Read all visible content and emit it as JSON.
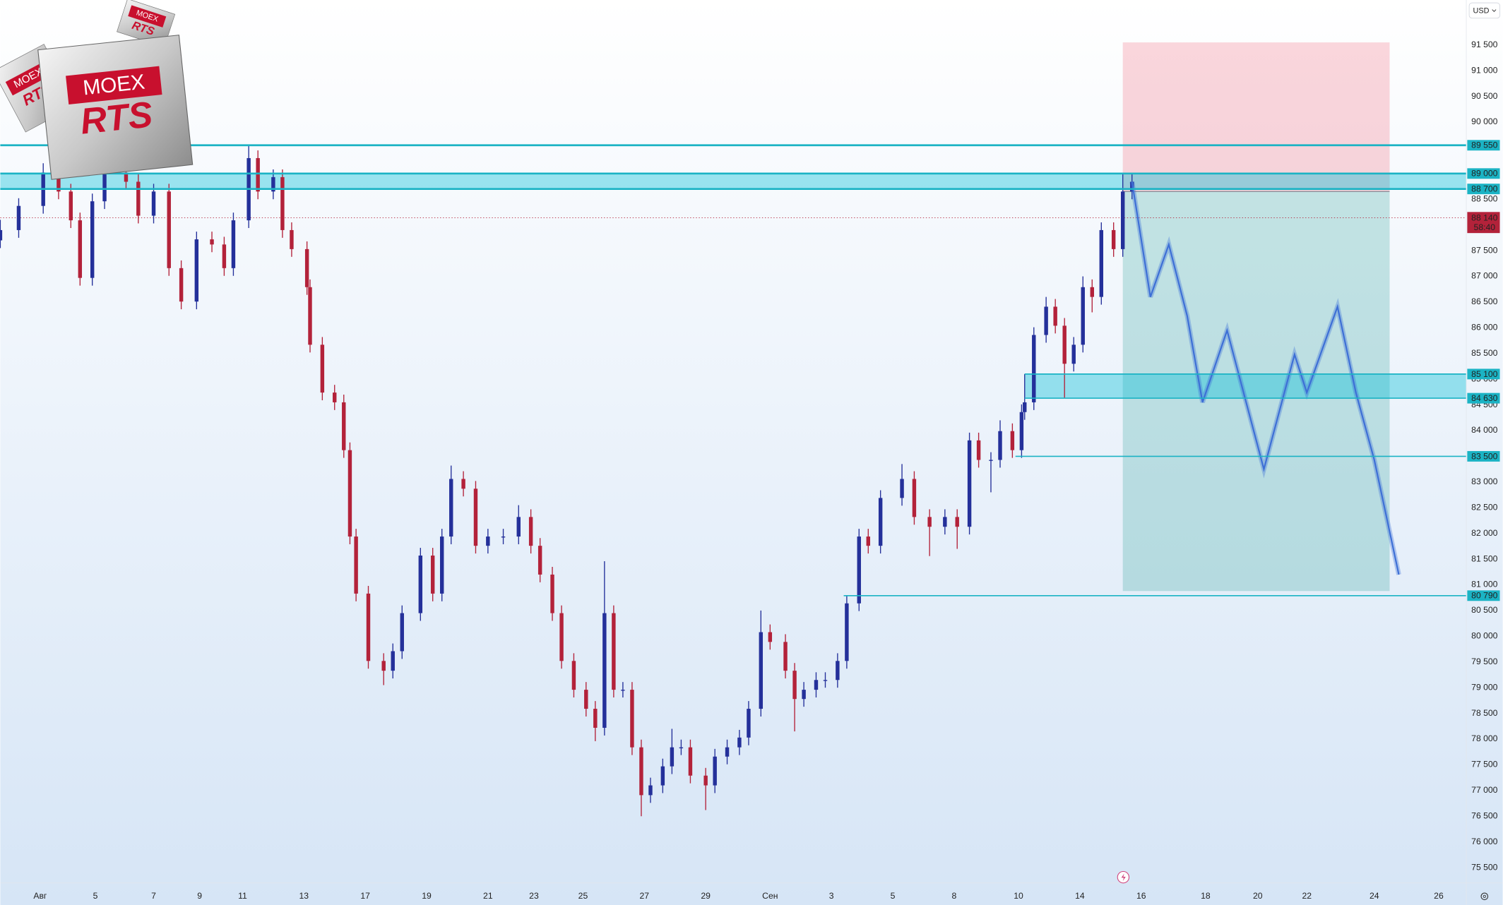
{
  "chart_data": {
    "type": "candlestick",
    "currency": "USD",
    "up_color": "#24309a",
    "down_color": "#b3223a",
    "grid": false,
    "xlim": [
      -1.3,
      46.5
    ],
    "ylim": [
      75202,
      92375
    ],
    "x": [
      -1.3,
      -0.7,
      0.1,
      0.6,
      1.0,
      1.3,
      1.7,
      2.1,
      2.8,
      3.2,
      3.7,
      4.2,
      4.6,
      5.1,
      5.6,
      6.0,
      6.3,
      6.8,
      7.1,
      7.6,
      7.9,
      8.2,
      8.7,
      8.8,
      9.2,
      9.6,
      9.9,
      10.1,
      10.3,
      10.7,
      11.2,
      11.5,
      11.8,
      12.4,
      12.8,
      13.1,
      13.4,
      13.8,
      14.2,
      14.6,
      15.1,
      15.6,
      16.0,
      16.3,
      16.7,
      17.0,
      17.4,
      17.8,
      18.1,
      18.4,
      18.7,
      19.0,
      19.3,
      19.6,
      19.9,
      20.3,
      20.6,
      20.9,
      21.2,
      21.7,
      22.0,
      22.4,
      22.8,
      23.1,
      23.5,
      23.8,
      24.3,
      24.6,
      24.9,
      25.3,
      25.6,
      26.0,
      26.3,
      26.7,
      27.0,
      27.4,
      28.1,
      28.5,
      29.0,
      29.5,
      29.9,
      30.3,
      30.6,
      31.0,
      31.3,
      31.7,
      32.0,
      32.1,
      32.4,
      32.8,
      33.1,
      33.4,
      33.7,
      34.0,
      34.3,
      34.6,
      35.0,
      35.3,
      35.6
    ],
    "open": [
      87700,
      87900,
      88370,
      89020,
      88650,
      88090,
      86970,
      88460,
      89020,
      88840,
      88180,
      88650,
      87160,
      86510,
      87720,
      87620,
      87160,
      88090,
      89300,
      88650,
      88930,
      87900,
      87530,
      86790,
      85670,
      84740,
      84550,
      83620,
      81940,
      80830,
      79520,
      79330,
      79710,
      80450,
      81570,
      80830,
      81940,
      83060,
      82870,
      81760,
      81940,
      81940,
      82320,
      81760,
      81200,
      80450,
      79520,
      78960,
      78590,
      78220,
      80450,
      78960,
      78960,
      77840,
      76910,
      77100,
      77470,
      77840,
      77840,
      77290,
      77100,
      77660,
      77840,
      78030,
      78590,
      80080,
      79890,
      79330,
      78780,
      78960,
      79150,
      79150,
      79520,
      80640,
      81940,
      81760,
      82690,
      83060,
      82320,
      82130,
      82320,
      82130,
      83810,
      83430,
      83430,
      83990,
      83620,
      84360,
      84550,
      85860,
      86410,
      86040,
      85300,
      85670,
      86790,
      86600,
      87900,
      87530,
      88650
    ],
    "high": [
      88100,
      88520,
      89200,
      89170,
      88800,
      88240,
      88610,
      89170,
      89170,
      88990,
      88800,
      88800,
      87310,
      87870,
      87870,
      87770,
      88240,
      89550,
      89450,
      89080,
      89080,
      88050,
      87680,
      86940,
      85820,
      84890,
      84700,
      83770,
      82090,
      80980,
      79670,
      79860,
      80600,
      81720,
      81720,
      82090,
      83320,
      83210,
      83020,
      82090,
      82090,
      82550,
      82470,
      81910,
      81350,
      80600,
      79670,
      79110,
      78740,
      81460,
      80600,
      79110,
      79110,
      77990,
      77250,
      77620,
      78200,
      77990,
      77990,
      77440,
      77810,
      77990,
      78180,
      78740,
      80500,
      80230,
      80040,
      79480,
      79110,
      79300,
      79300,
      79670,
      80790,
      82090,
      82090,
      82840,
      83350,
      83210,
      82470,
      82470,
      82470,
      83960,
      83960,
      83580,
      84200,
      84140,
      84510,
      85100,
      86010,
      86600,
      86560,
      86190,
      85820,
      87000,
      86940,
      88050,
      88050,
      89000,
      89000
    ],
    "low": [
      87550,
      87750,
      88220,
      88500,
      87940,
      86820,
      86820,
      88310,
      88690,
      88030,
      88030,
      87010,
      86360,
      86360,
      87470,
      87010,
      87010,
      87940,
      88500,
      88500,
      87750,
      87380,
      86640,
      85520,
      84590,
      84400,
      83470,
      81790,
      80680,
      79370,
      79050,
      79180,
      79560,
      80300,
      80680,
      80680,
      81790,
      82720,
      81610,
      81610,
      81790,
      81790,
      81610,
      81050,
      80300,
      79370,
      78810,
      78440,
      77960,
      78070,
      78810,
      78810,
      77690,
      76500,
      76760,
      76950,
      77320,
      77690,
      77140,
      76620,
      76950,
      77510,
      77690,
      77880,
      78440,
      79740,
      79180,
      78150,
      78630,
      78810,
      79000,
      79000,
      79370,
      80490,
      81610,
      81610,
      82540,
      82170,
      81560,
      81980,
      81700,
      81980,
      83280,
      82800,
      83280,
      83470,
      83470,
      84210,
      84400,
      85710,
      85890,
      84630,
      85150,
      85520,
      86300,
      86450,
      87380,
      87380,
      88500
    ],
    "close": [
      87900,
      88370,
      89020,
      88650,
      88090,
      86970,
      88460,
      89020,
      88840,
      88180,
      88650,
      87160,
      86510,
      87720,
      87620,
      87160,
      88090,
      89300,
      88650,
      88930,
      87900,
      87530,
      86790,
      85670,
      84740,
      84550,
      83620,
      81940,
      80830,
      79520,
      79330,
      79710,
      80450,
      81570,
      80830,
      81940,
      83060,
      82870,
      81760,
      81940,
      81940,
      82320,
      81760,
      81200,
      80450,
      79520,
      78960,
      78590,
      78220,
      80450,
      78960,
      78960,
      77840,
      76910,
      77100,
      77470,
      77840,
      77840,
      77290,
      77100,
      77660,
      77840,
      78030,
      78590,
      80080,
      79890,
      79330,
      78780,
      78960,
      79150,
      79150,
      79520,
      80640,
      81940,
      81760,
      82690,
      83060,
      82320,
      82130,
      82320,
      82130,
      83810,
      83430,
      83430,
      83990,
      83620,
      84360,
      84550,
      85860,
      86410,
      86040,
      85300,
      85670,
      86790,
      86600,
      87900,
      87530,
      88650,
      88840
    ],
    "projection": {
      "color": "#3d6fd6",
      "x": [
        35.6,
        36.2,
        36.8,
        37.4,
        37.9,
        38.7,
        39.9,
        40.9,
        41.3,
        42.3,
        42.9,
        43.5,
        44.3
      ],
      "values": [
        88840,
        86600,
        87620,
        86230,
        84550,
        85950,
        83250,
        85480,
        84740,
        86410,
        84740,
        83430,
        81200
      ]
    },
    "position": {
      "x": [
        35.3,
        44.0
      ],
      "entry": 88650,
      "stop": 91550,
      "target": 80880
    },
    "levels": [
      {
        "value": 89550,
        "label": "89 550",
        "start": -1.3
      },
      {
        "value": 89000,
        "label": "89 000",
        "start": -1.3
      },
      {
        "value": 88700,
        "label": "88 700",
        "start": -1.3
      },
      {
        "value": 85100,
        "label": "85 100",
        "start": 32.1
      },
      {
        "value": 84630,
        "label": "84 630",
        "start": 32.1
      },
      {
        "value": 83500,
        "label": "83 500",
        "start": 31.8
      },
      {
        "value": 80790,
        "label": "80 790",
        "start": 26.2
      }
    ],
    "level_color": "#1bb3c4",
    "zones": [
      {
        "from": 88700,
        "to": 89000,
        "start": -1.3
      },
      {
        "from": 84630,
        "to": 85100,
        "start": 32.1
      }
    ],
    "last_price": {
      "value": 88140,
      "label": "88 140",
      "countdown": "58:40"
    },
    "xticks": [
      {
        "value": 0,
        "label": "Авг"
      },
      {
        "value": 1.8,
        "label": "5"
      },
      {
        "value": 3.7,
        "label": "7"
      },
      {
        "value": 5.2,
        "label": "9"
      },
      {
        "value": 6.6,
        "label": "11"
      },
      {
        "value": 8.6,
        "label": "13"
      },
      {
        "value": 10.6,
        "label": "17"
      },
      {
        "value": 12.6,
        "label": "19"
      },
      {
        "value": 14.6,
        "label": "21"
      },
      {
        "value": 16.1,
        "label": "23"
      },
      {
        "value": 17.7,
        "label": "25"
      },
      {
        "value": 19.7,
        "label": "27"
      },
      {
        "value": 21.7,
        "label": "29"
      },
      {
        "value": 23.8,
        "label": "Сен"
      },
      {
        "value": 25.8,
        "label": "3"
      },
      {
        "value": 27.8,
        "label": "5"
      },
      {
        "value": 29.8,
        "label": "8"
      },
      {
        "value": 31.9,
        "label": "10"
      },
      {
        "value": 33.9,
        "label": "14"
      },
      {
        "value": 35.9,
        "label": "16"
      },
      {
        "value": 38.0,
        "label": "18"
      },
      {
        "value": 39.7,
        "label": "20"
      },
      {
        "value": 41.3,
        "label": "22"
      },
      {
        "value": 43.5,
        "label": "24"
      },
      {
        "value": 45.6,
        "label": "26"
      }
    ],
    "yticks": [
      {
        "value": 75500,
        "label": "75 500"
      },
      {
        "value": 76000,
        "label": "76 000"
      },
      {
        "value": 76500,
        "label": "76 500"
      },
      {
        "value": 77000,
        "label": "77 000"
      },
      {
        "value": 77500,
        "label": "77 500"
      },
      {
        "value": 78000,
        "label": "78 000"
      },
      {
        "value": 78500,
        "label": "78 500"
      },
      {
        "value": 79000,
        "label": "79 000"
      },
      {
        "value": 79500,
        "label": "79 500"
      },
      {
        "value": 80000,
        "label": "80 000"
      },
      {
        "value": 80500,
        "label": "80 500"
      },
      {
        "value": 81000,
        "label": "81 000"
      },
      {
        "value": 81500,
        "label": "81 500"
      },
      {
        "value": 82000,
        "label": "82 000"
      },
      {
        "value": 82500,
        "label": "82 500"
      },
      {
        "value": 83000,
        "label": "83 000"
      },
      {
        "value": 83500,
        "label": "83 500"
      },
      {
        "value": 84000,
        "label": "84 000"
      },
      {
        "value": 84500,
        "label": "84 500"
      },
      {
        "value": 85000,
        "label": "85 000"
      },
      {
        "value": 85500,
        "label": "85 500"
      },
      {
        "value": 86000,
        "label": "86 000"
      },
      {
        "value": 86500,
        "label": "86 500"
      },
      {
        "value": 87000,
        "label": "87 000"
      },
      {
        "value": 87500,
        "label": "87 500"
      },
      {
        "value": 88000,
        "label": "88 000"
      },
      {
        "value": 88500,
        "label": "88 500"
      },
      {
        "value": 89000,
        "label": "89 000"
      },
      {
        "value": 89500,
        "label": "89 500"
      },
      {
        "value": 90000,
        "label": "90 000"
      },
      {
        "value": 90500,
        "label": "90 500"
      },
      {
        "value": 91000,
        "label": "91 000"
      },
      {
        "value": 91500,
        "label": "91 500"
      }
    ]
  },
  "logos": [
    {
      "top": "MOEX",
      "bottom": "RTS"
    },
    {
      "top": "MOEX",
      "bottom": "RTS"
    },
    {
      "top": "MOEX",
      "bottom": "RTS"
    }
  ]
}
